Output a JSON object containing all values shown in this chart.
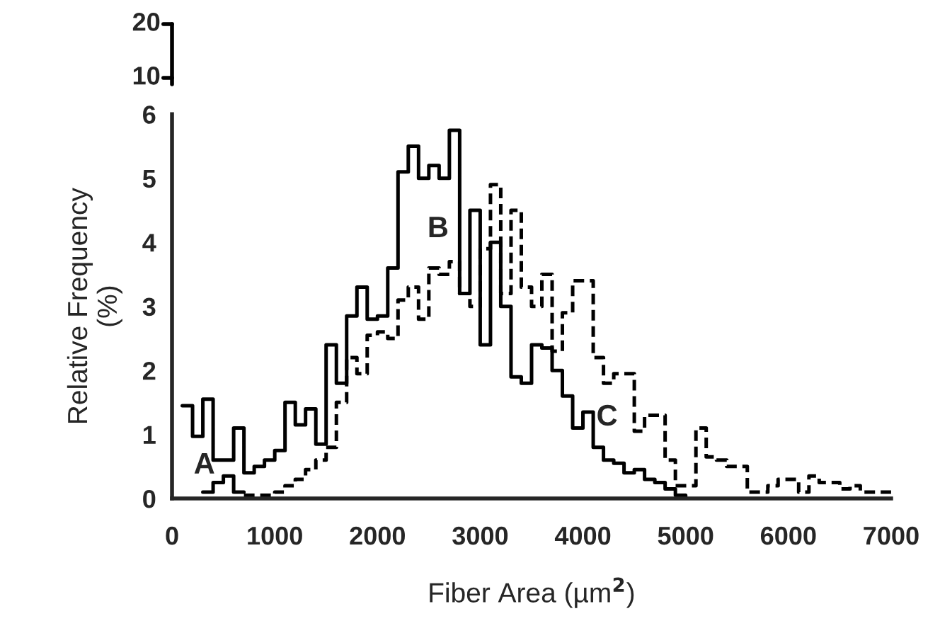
{
  "chart_data": [
    {
      "type": "other",
      "annotations": [
        "20",
        "10"
      ]
    },
    {
      "type": "step",
      "xlabel": "Fiber Area (µm$^{2}$)",
      "ylabel": "Relative Frequency\n(%)",
      "series": [
        {
          "color": "#000000",
          "line_style": "solid",
          "x": [
            300,
            400,
            500,
            600,
            700
          ],
          "values": [
            0.1,
            0.25,
            0.35,
            0.1,
            0.1
          ]
        },
        {
          "color": "#000000",
          "line_style": "solid",
          "x": [
            100,
            200,
            300,
            400,
            500,
            600,
            700,
            800,
            900,
            1000,
            1100,
            1200,
            1300,
            1400,
            1500,
            1600,
            1700,
            1800,
            1900,
            2000,
            2100,
            2200,
            2300,
            2400,
            2500,
            2600,
            2700,
            2800,
            2900,
            3000,
            3100,
            3200,
            3300,
            3400,
            3500,
            3600,
            3700,
            3800,
            3900,
            4000,
            4100,
            4200,
            4300,
            4400,
            4500,
            4600,
            4700,
            4800,
            4900,
            5000
          ],
          "values": [
            1.45,
            0.97,
            1.55,
            0.6,
            0.6,
            1.1,
            0.4,
            0.5,
            0.6,
            0.75,
            1.5,
            1.15,
            1.4,
            0.85,
            2.4,
            1.8,
            2.85,
            3.3,
            2.8,
            2.85,
            3.6,
            5.1,
            5.5,
            5.0,
            5.2,
            5.0,
            5.75,
            3.2,
            4.5,
            2.4,
            4.0,
            3.0,
            1.9,
            1.8,
            2.4,
            2.35,
            2.0,
            1.6,
            1.1,
            1.35,
            0.8,
            0.6,
            0.55,
            0.4,
            0.45,
            0.3,
            0.25,
            0.15,
            0.05,
            0
          ]
        },
        {
          "color": "#000000",
          "line_style": "dashed",
          "x": [
            700,
            800,
            900,
            1000,
            1100,
            1200,
            1300,
            1400,
            1500,
            1600,
            1700,
            1800,
            1900,
            2000,
            2100,
            2200,
            2300,
            2400,
            2500,
            2600,
            2700,
            2800,
            2900,
            3000,
            3100,
            3200,
            3300,
            3400,
            3500,
            3600,
            3700,
            3800,
            3900,
            4000,
            4100,
            4200,
            4300,
            4400,
            4500,
            4600,
            4700,
            4800,
            4900,
            5000,
            5100,
            5200,
            5300,
            5400,
            5500,
            5600,
            5700,
            5800,
            5900,
            6000,
            6100,
            6200,
            6300,
            6400,
            6500,
            6600,
            6700,
            6800,
            6900,
            7000
          ],
          "values": [
            0.05,
            0.05,
            0.05,
            0.1,
            0.2,
            0.3,
            0.45,
            0.6,
            0.8,
            1.5,
            2.2,
            1.95,
            2.55,
            2.6,
            2.5,
            3.1,
            3.3,
            2.8,
            3.6,
            3.5,
            3.7,
            3.2,
            3.0,
            3.9,
            4.9,
            3.2,
            4.5,
            3.3,
            3.0,
            3.5,
            2.3,
            2.9,
            3.4,
            3.4,
            2.2,
            1.8,
            1.95,
            1.95,
            1.05,
            1.3,
            1.3,
            0.6,
            0.2,
            0.2,
            1.1,
            0.65,
            0.6,
            0.5,
            0.5,
            0.1,
            0.1,
            0.2,
            0.3,
            0.3,
            0.1,
            0.35,
            0.25,
            0.25,
            0.15,
            0.2,
            0.1,
            0.1,
            0.1,
            0.1
          ]
        }
      ],
      "annotations": [
        "A",
        "B",
        "C"
      ],
      "xlim": [
        0,
        7000
      ],
      "ylim": [
        0,
        6
      ],
      "xticks": [
        0,
        1000,
        2000,
        3000,
        4000,
        5000,
        6000,
        7000
      ],
      "yticks": [
        0,
        1,
        2,
        3,
        4,
        5,
        6
      ]
    }
  ]
}
